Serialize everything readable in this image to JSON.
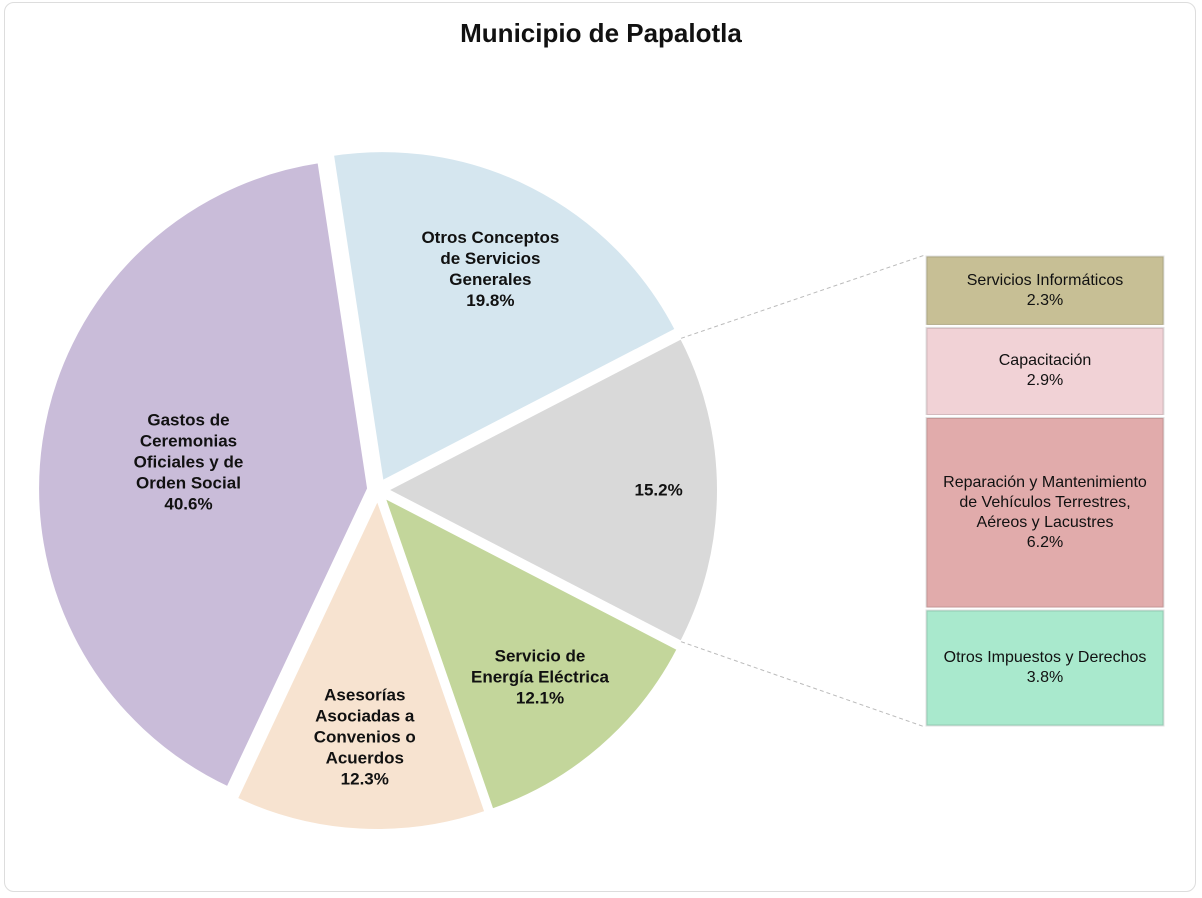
{
  "chart_data": {
    "type": "pie-of-bar",
    "title": "Municipio de Papalotla",
    "categories": [
      "Otros Conceptos de Servicios Generales",
      null,
      "Servicio de Energía Eléctrica",
      "Asesorías Asociadas a Convenios o Acuerdos",
      "Gastos de Ceremonias Oficiales y de Orden Social"
    ],
    "values": [
      19.8,
      15.2,
      12.1,
      12.3,
      40.6
    ],
    "value_labels": [
      "19.8%",
      "15.2%",
      "12.1%",
      "12.3%",
      "40.6%"
    ],
    "colors": [
      "#d5e6ef",
      "#d9d9d9",
      "#c3d69b",
      "#f7e3d0",
      "#c9bcd9"
    ],
    "breakdown": {
      "categories": [
        "Servicios Informáticos",
        "Capacitación",
        "Reparación y Mantenimiento de Vehículos Terrestres, Aéreos y Lacustres",
        "Otros Impuestos y Derechos"
      ],
      "values": [
        2.3,
        2.9,
        6.2,
        3.8
      ],
      "value_labels": [
        "2.3%",
        "2.9%",
        "6.2%",
        "3.8%"
      ],
      "colors": [
        "#c7bf95",
        "#f1d2d6",
        "#e1abab",
        "#a9e9cd"
      ]
    }
  }
}
